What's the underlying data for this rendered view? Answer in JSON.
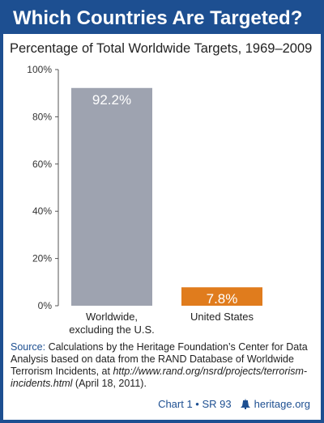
{
  "header": {
    "title": "Which Countries Are Targeted?",
    "subtitle": "Percentage of Total Worldwide Targets, 1969–2009"
  },
  "chart_data": {
    "type": "bar",
    "categories": [
      "Worldwide,\nexcluding the U.S.",
      "United States"
    ],
    "values": [
      92.2,
      7.8
    ],
    "data_labels": [
      "92.2%",
      "7.8%"
    ],
    "bar_colors": [
      "#9ea3b0",
      "#e07c1d"
    ],
    "ylim": [
      0,
      100
    ],
    "yticks": [
      0,
      20,
      40,
      60,
      80,
      100
    ],
    "ytick_labels": [
      "0%",
      "20%",
      "40%",
      "60%",
      "80%",
      "100%"
    ],
    "grid": false
  },
  "source": {
    "label": "Source:",
    "text_before": " Calculations by the Heritage Foundation’s Center for Data Analysis based on data from the RAND Database of Worldwide Terrorism Incidents, at ",
    "url": "http://www.rand.org/nsrd/projects/terrorism-incidents.html",
    "text_after": " (April 18, 2011)."
  },
  "footer": {
    "chart_ref": "Chart 1 • SR 93",
    "site": "heritage.org",
    "icon": "liberty-bell-icon"
  },
  "colors": {
    "brand_blue": "#1d4f91",
    "axis": "#555555"
  }
}
